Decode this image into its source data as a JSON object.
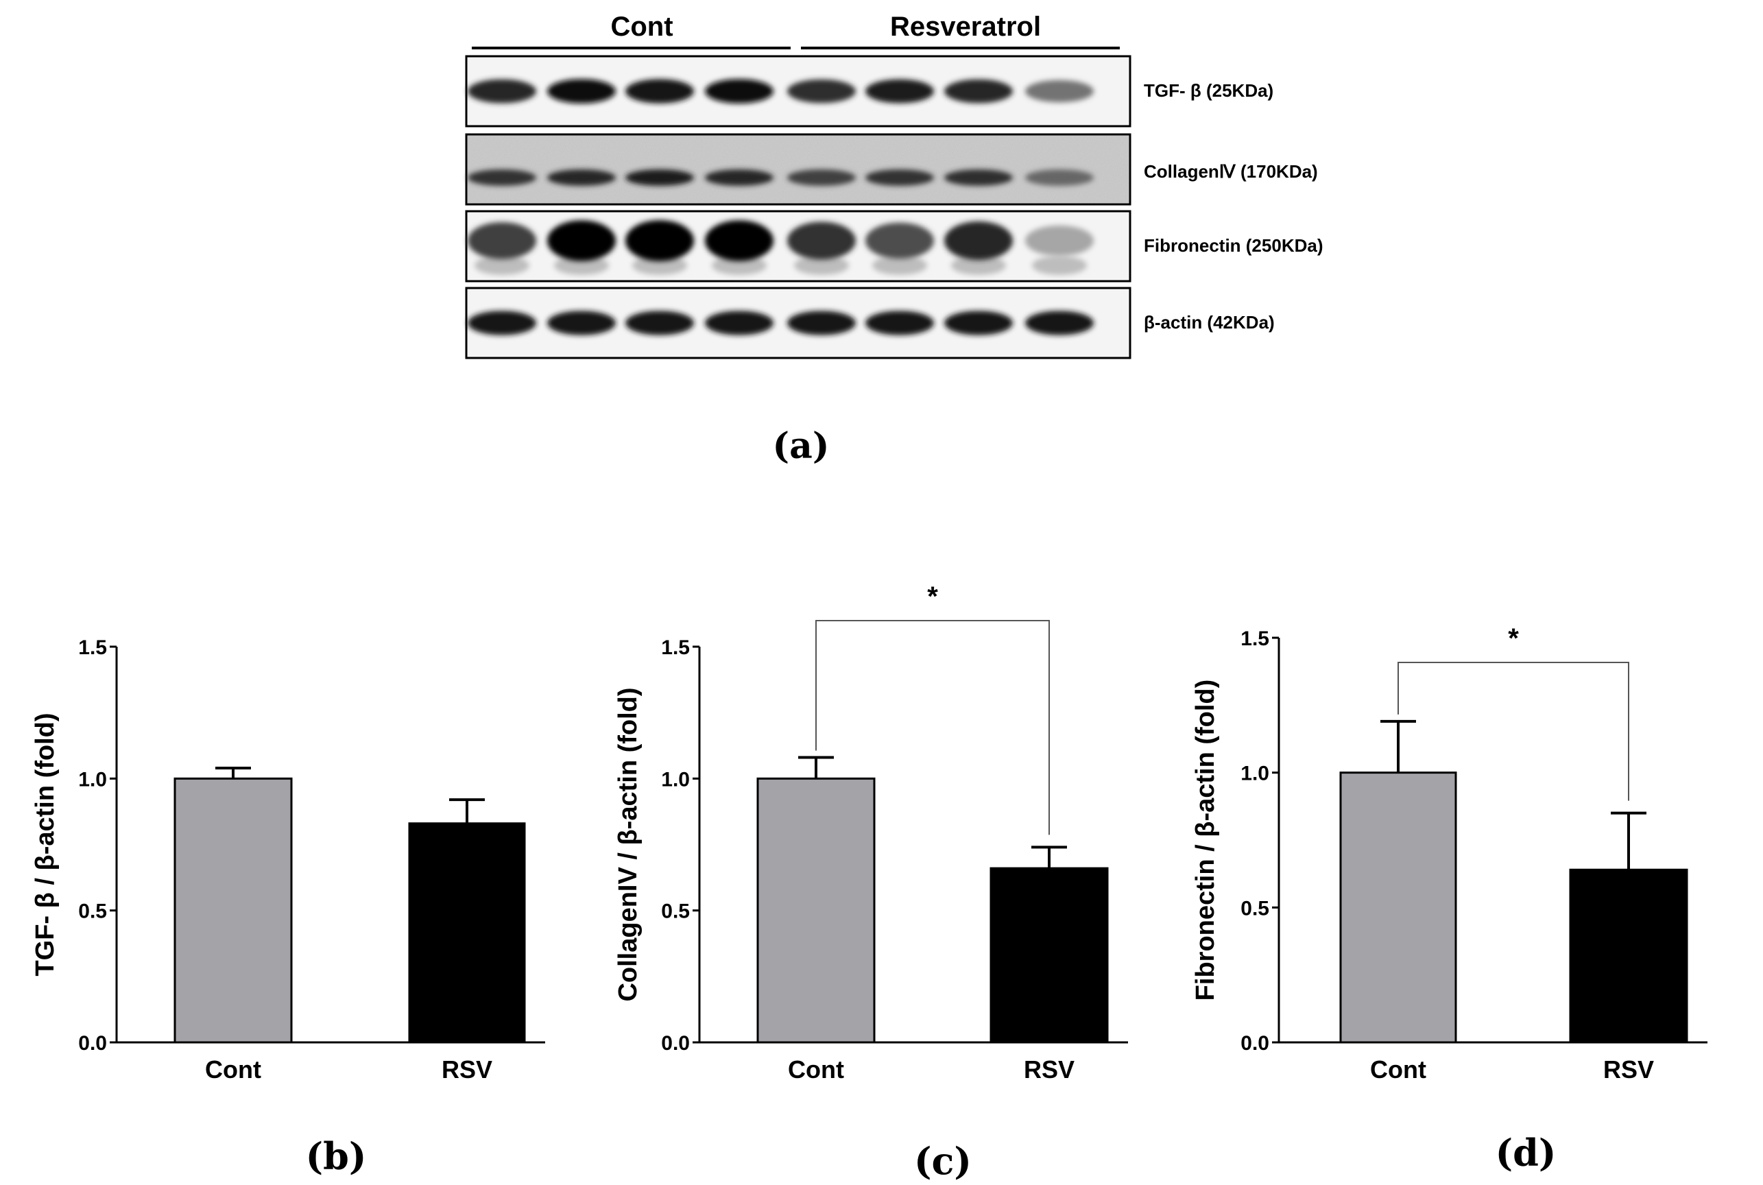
{
  "blot": {
    "groups": [
      {
        "label": "Cont",
        "lanes": 4
      },
      {
        "label": "Resveratrol",
        "lanes": 4
      }
    ],
    "rows": [
      {
        "label": "TGF- β (25KDa)",
        "intensities": [
          0.85,
          0.95,
          0.93,
          0.95,
          0.82,
          0.88,
          0.85,
          0.55
        ],
        "style": "thin"
      },
      {
        "label": "CollagenⅣ (170KDa)",
        "intensities": [
          0.8,
          0.85,
          0.88,
          0.85,
          0.75,
          0.8,
          0.82,
          0.6
        ],
        "style": "noisy"
      },
      {
        "label": "Fibronectin (250KDa)",
        "intensities": [
          0.75,
          0.98,
          1.0,
          0.98,
          0.8,
          0.7,
          0.85,
          0.35
        ],
        "style": "thick"
      },
      {
        "label": "β-actin (42KDa)",
        "intensities": [
          0.92,
          0.92,
          0.92,
          0.92,
          0.92,
          0.92,
          0.92,
          0.92
        ],
        "style": "thin"
      }
    ]
  },
  "panel_labels": {
    "a": "(a)",
    "b": "(b)",
    "c": "(c)",
    "d": "(d)"
  },
  "colors": {
    "cont_bar": "#a3a3a8",
    "rsv_bar": "#000000"
  },
  "chart_data": [
    {
      "type": "bar",
      "categories": [
        "Cont",
        "RSV"
      ],
      "values": [
        1.0,
        0.83
      ],
      "errors": [
        0.04,
        0.09
      ],
      "ylabel": "TGF- β / β-actin (fold)",
      "xlabel": "",
      "ylim": [
        0,
        1.5
      ],
      "yticks": [
        "0.0",
        "0.5",
        "1.0",
        "1.5"
      ],
      "significance": null
    },
    {
      "type": "bar",
      "categories": [
        "Cont",
        "RSV"
      ],
      "values": [
        1.0,
        0.66
      ],
      "errors": [
        0.08,
        0.08
      ],
      "ylabel": "CollagenIV / β-actin (fold)",
      "xlabel": "",
      "ylim": [
        0,
        1.5
      ],
      "yticks": [
        "0.0",
        "0.5",
        "1.0",
        "1.5"
      ],
      "significance": "*"
    },
    {
      "type": "bar",
      "categories": [
        "Cont",
        "RSV"
      ],
      "values": [
        1.0,
        0.64
      ],
      "errors": [
        0.19,
        0.21
      ],
      "ylabel": "Fibronectin / β-actin (fold)",
      "xlabel": "",
      "ylim": [
        0,
        1.5
      ],
      "yticks": [
        "0.0",
        "0.5",
        "1.0",
        "1.5"
      ],
      "significance": "*"
    }
  ]
}
